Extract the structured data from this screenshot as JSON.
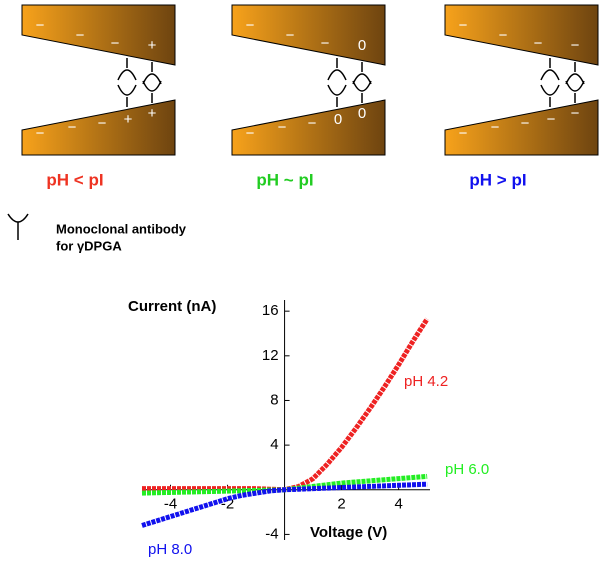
{
  "diagram": {
    "panels": [
      {
        "label": "pH < pI",
        "color": "#ee3322",
        "top_signs": [
          "−",
          "−",
          "−",
          "+"
        ],
        "bottom_signs": [
          "−",
          "−",
          "−",
          "+",
          "+"
        ]
      },
      {
        "label": "pH ~ pI",
        "color": "#22cc22",
        "top_signs": [
          "−",
          "−",
          "−",
          "0"
        ],
        "bottom_signs": [
          "−",
          "−",
          "−",
          "0",
          "0"
        ]
      },
      {
        "label": "pH > pI",
        "color": "#1111ee",
        "top_signs": [
          "−",
          "−",
          "−",
          "−"
        ],
        "bottom_signs": [
          "−",
          "−",
          "−",
          "−",
          "−"
        ]
      }
    ],
    "legend": [
      "Monoclonal antibody",
      "for γDPGA"
    ]
  },
  "chart_data": {
    "type": "line",
    "xlabel": "Voltage (V)",
    "ylabel": "Current (nA)",
    "x": [
      -5,
      -4.5,
      -4,
      -3.5,
      -3,
      -2.5,
      -2,
      -1.5,
      -1,
      -0.5,
      0,
      0.5,
      1,
      1.5,
      2,
      2.5,
      3,
      3.5,
      4,
      4.5,
      5
    ],
    "series": [
      {
        "name": "pH 4.2",
        "color": "#ee2222",
        "values": [
          0.1,
          0.1,
          0.1,
          0.1,
          0.1,
          0.1,
          0.1,
          0.1,
          0.1,
          0.05,
          0,
          0.3,
          1.0,
          2.3,
          3.8,
          5.5,
          7.3,
          9.2,
          11.2,
          13.3,
          15.3
        ]
      },
      {
        "name": "pH 6.0",
        "color": "#22ee22",
        "values": [
          -0.3,
          -0.27,
          -0.24,
          -0.21,
          -0.18,
          -0.15,
          -0.12,
          -0.09,
          -0.06,
          -0.03,
          0,
          0.15,
          0.3,
          0.45,
          0.6,
          0.7,
          0.8,
          0.9,
          1.0,
          1.1,
          1.2
        ]
      },
      {
        "name": "pH 8.0",
        "color": "#1111ee",
        "values": [
          -3.2,
          -2.8,
          -2.4,
          -2.0,
          -1.6,
          -1.2,
          -0.8,
          -0.5,
          -0.3,
          -0.1,
          0,
          0.05,
          0.1,
          0.15,
          0.2,
          0.25,
          0.3,
          0.35,
          0.4,
          0.45,
          0.5
        ]
      }
    ],
    "xlim": [
      -5,
      5.1
    ],
    "ylim": [
      -4.5,
      17
    ],
    "xticks": [
      -4,
      -2,
      2,
      4
    ],
    "yticks": [
      -4,
      4,
      8,
      12,
      16
    ]
  }
}
